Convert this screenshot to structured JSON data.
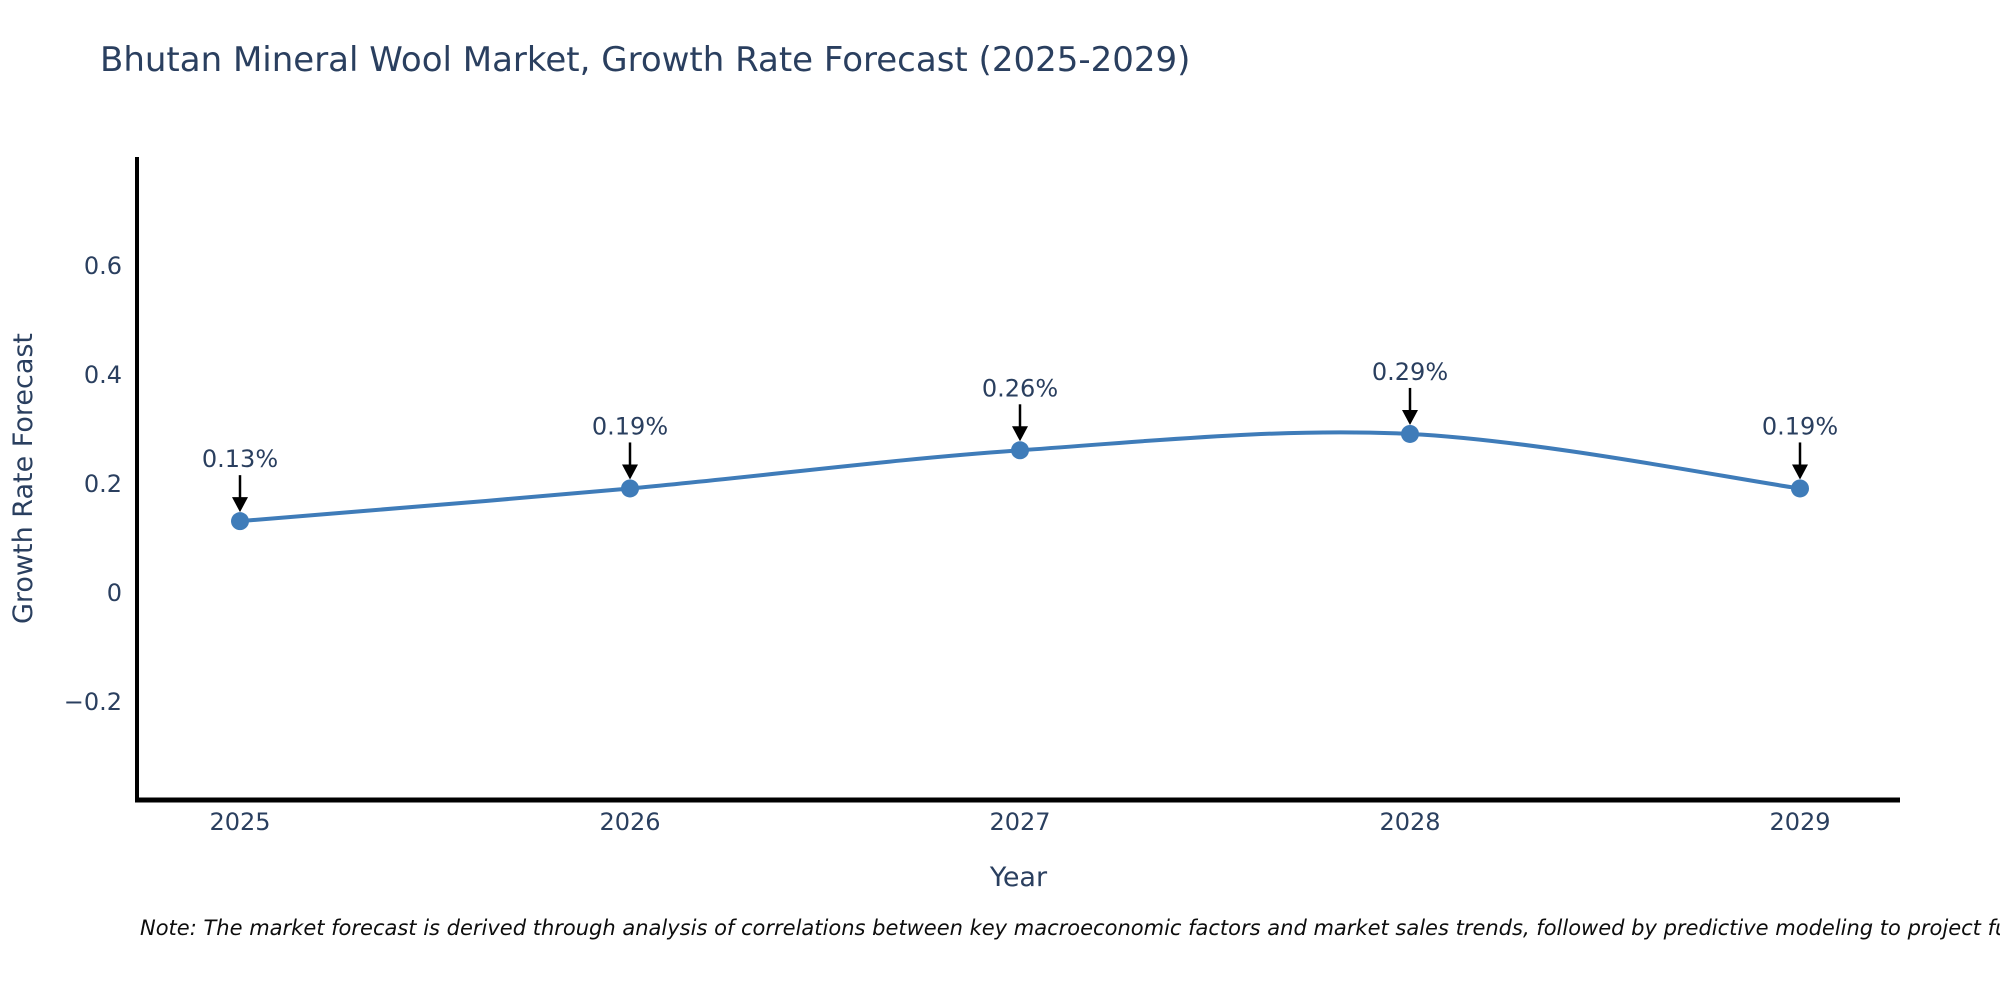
{
  "title": "Bhutan Mineral Wool Market, Growth Rate Forecast (2025-2029)",
  "note": "Note: The market forecast is derived through analysis of correlations between key macroeconomic factors and market sales trends, followed by predictive modeling to project future sales",
  "chart_data": {
    "type": "line",
    "title": "Bhutan Mineral Wool Market, Growth Rate Forecast (2025-2029)",
    "x": [
      2025,
      2026,
      2027,
      2028,
      2029
    ],
    "values": [
      0.13,
      0.19,
      0.26,
      0.29,
      0.19
    ],
    "point_labels": [
      "0.13%",
      "0.19%",
      "0.26%",
      "0.29%",
      "0.19%"
    ],
    "xlabel": "Year",
    "ylabel": "Growth Rate Forecast",
    "yticks": [
      -0.2,
      0,
      0.2,
      0.4,
      0.6
    ],
    "ytick_labels": [
      "−0.2",
      "0",
      "0.2",
      "0.4",
      "0.6"
    ],
    "ylim": [
      -0.38,
      0.79
    ],
    "line_shape": "spline",
    "grid": false,
    "legend_position": "none",
    "colors": {
      "line": "#3f7cb9",
      "marker": "#3f7cb9",
      "text": "#2a3f5f",
      "axis": "#000000",
      "arrow": "#000000"
    }
  }
}
